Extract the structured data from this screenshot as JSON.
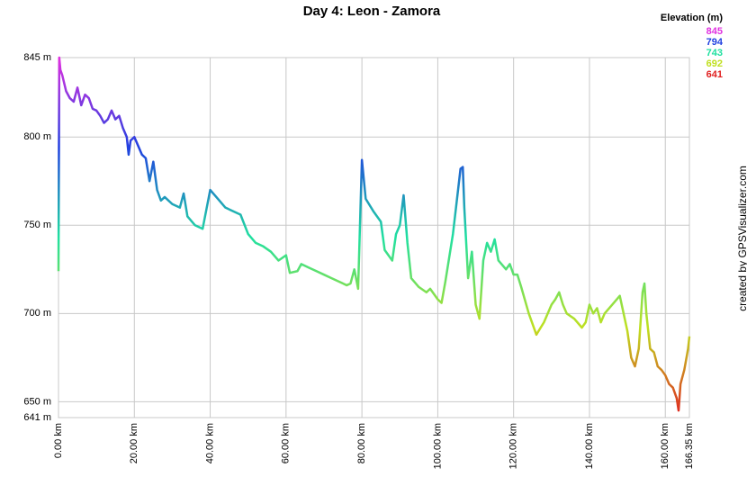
{
  "chart_data": {
    "type": "line",
    "title": "Day 4: Leon - Zamora",
    "credit": "created by GPSVisualizer.com",
    "legend": {
      "title": "Elevation (m)",
      "values": [
        845,
        794,
        743,
        692,
        641
      ],
      "colors": [
        "#e030e0",
        "#2040e0",
        "#20e0a0",
        "#c0e020",
        "#e02020"
      ]
    },
    "xlim": [
      0,
      166.35
    ],
    "ylim": [
      641,
      845
    ],
    "xticks": [
      {
        "value": 0,
        "label": "0.00 km"
      },
      {
        "value": 20,
        "label": "20.00 km"
      },
      {
        "value": 40,
        "label": "40.00 km"
      },
      {
        "value": 60,
        "label": "60.00 km"
      },
      {
        "value": 80,
        "label": "80.00 km"
      },
      {
        "value": 100,
        "label": "100.00 km"
      },
      {
        "value": 120,
        "label": "120.00 km"
      },
      {
        "value": 140,
        "label": "140.00 km"
      },
      {
        "value": 160,
        "label": "160.00 km"
      },
      {
        "value": 166.35,
        "label": "166.35 km"
      }
    ],
    "yticks": [
      {
        "value": 641,
        "label": "641 m"
      },
      {
        "value": 650,
        "label": "650 m"
      },
      {
        "value": 700,
        "label": "700 m"
      },
      {
        "value": 750,
        "label": "750 m"
      },
      {
        "value": 800,
        "label": "800 m"
      },
      {
        "value": 845,
        "label": "845 m"
      }
    ],
    "grid": true,
    "x": [
      0,
      0.2,
      0.5,
      1,
      2,
      3,
      4,
      5,
      6,
      7,
      8,
      9,
      10,
      11,
      12,
      13,
      14,
      15,
      16,
      17,
      18,
      18.5,
      19,
      20,
      21,
      22,
      23,
      24,
      25,
      26,
      27,
      28,
      30,
      32,
      33,
      34,
      36,
      38,
      40,
      42,
      44,
      46,
      48,
      50,
      52,
      54,
      56,
      58,
      60,
      61,
      63,
      64,
      66,
      68,
      70,
      72,
      74,
      76,
      77,
      78,
      79,
      80,
      81,
      83,
      85,
      86,
      88,
      89,
      90,
      91,
      92,
      93,
      95,
      97,
      98,
      100,
      101,
      102,
      104,
      106,
      106.6,
      107,
      108,
      109,
      110,
      111,
      112,
      113,
      114,
      115,
      116,
      118,
      119,
      120,
      121,
      122,
      124,
      126,
      128,
      130,
      131,
      132,
      133,
      134,
      136,
      138,
      139,
      140,
      141,
      142,
      143,
      144,
      146,
      148,
      149,
      150,
      151,
      152,
      153,
      154,
      154.5,
      155,
      156,
      157,
      158,
      159,
      160,
      161,
      162,
      163,
      163.5,
      164,
      165,
      166,
      166.35
    ],
    "series": [
      {
        "values": [
          724,
          845,
          838,
          835,
          826,
          822,
          820,
          828,
          818,
          824,
          822,
          816,
          815,
          812,
          808,
          810,
          815,
          810,
          812,
          805,
          800,
          790,
          798,
          800,
          795,
          790,
          788,
          775,
          786,
          770,
          764,
          766,
          762,
          760,
          768,
          755,
          750,
          748,
          770,
          765,
          760,
          758,
          756,
          745,
          740,
          738,
          735,
          730,
          733,
          723,
          724,
          728,
          726,
          724,
          722,
          720,
          718,
          716,
          717,
          725,
          714,
          787,
          765,
          758,
          752,
          736,
          730,
          745,
          750,
          767,
          740,
          720,
          715,
          712,
          714,
          708,
          706,
          718,
          745,
          782,
          783,
          760,
          720,
          735,
          705,
          697,
          730,
          740,
          735,
          742,
          730,
          725,
          728,
          722,
          722,
          715,
          700,
          688,
          695,
          705,
          708,
          712,
          705,
          700,
          697,
          692,
          695,
          705,
          700,
          703,
          695,
          700,
          705,
          710,
          700,
          690,
          675,
          670,
          680,
          712,
          717,
          700,
          680,
          678,
          670,
          668,
          665,
          660,
          658,
          652,
          645,
          660,
          668,
          680,
          687
        ]
      }
    ]
  }
}
